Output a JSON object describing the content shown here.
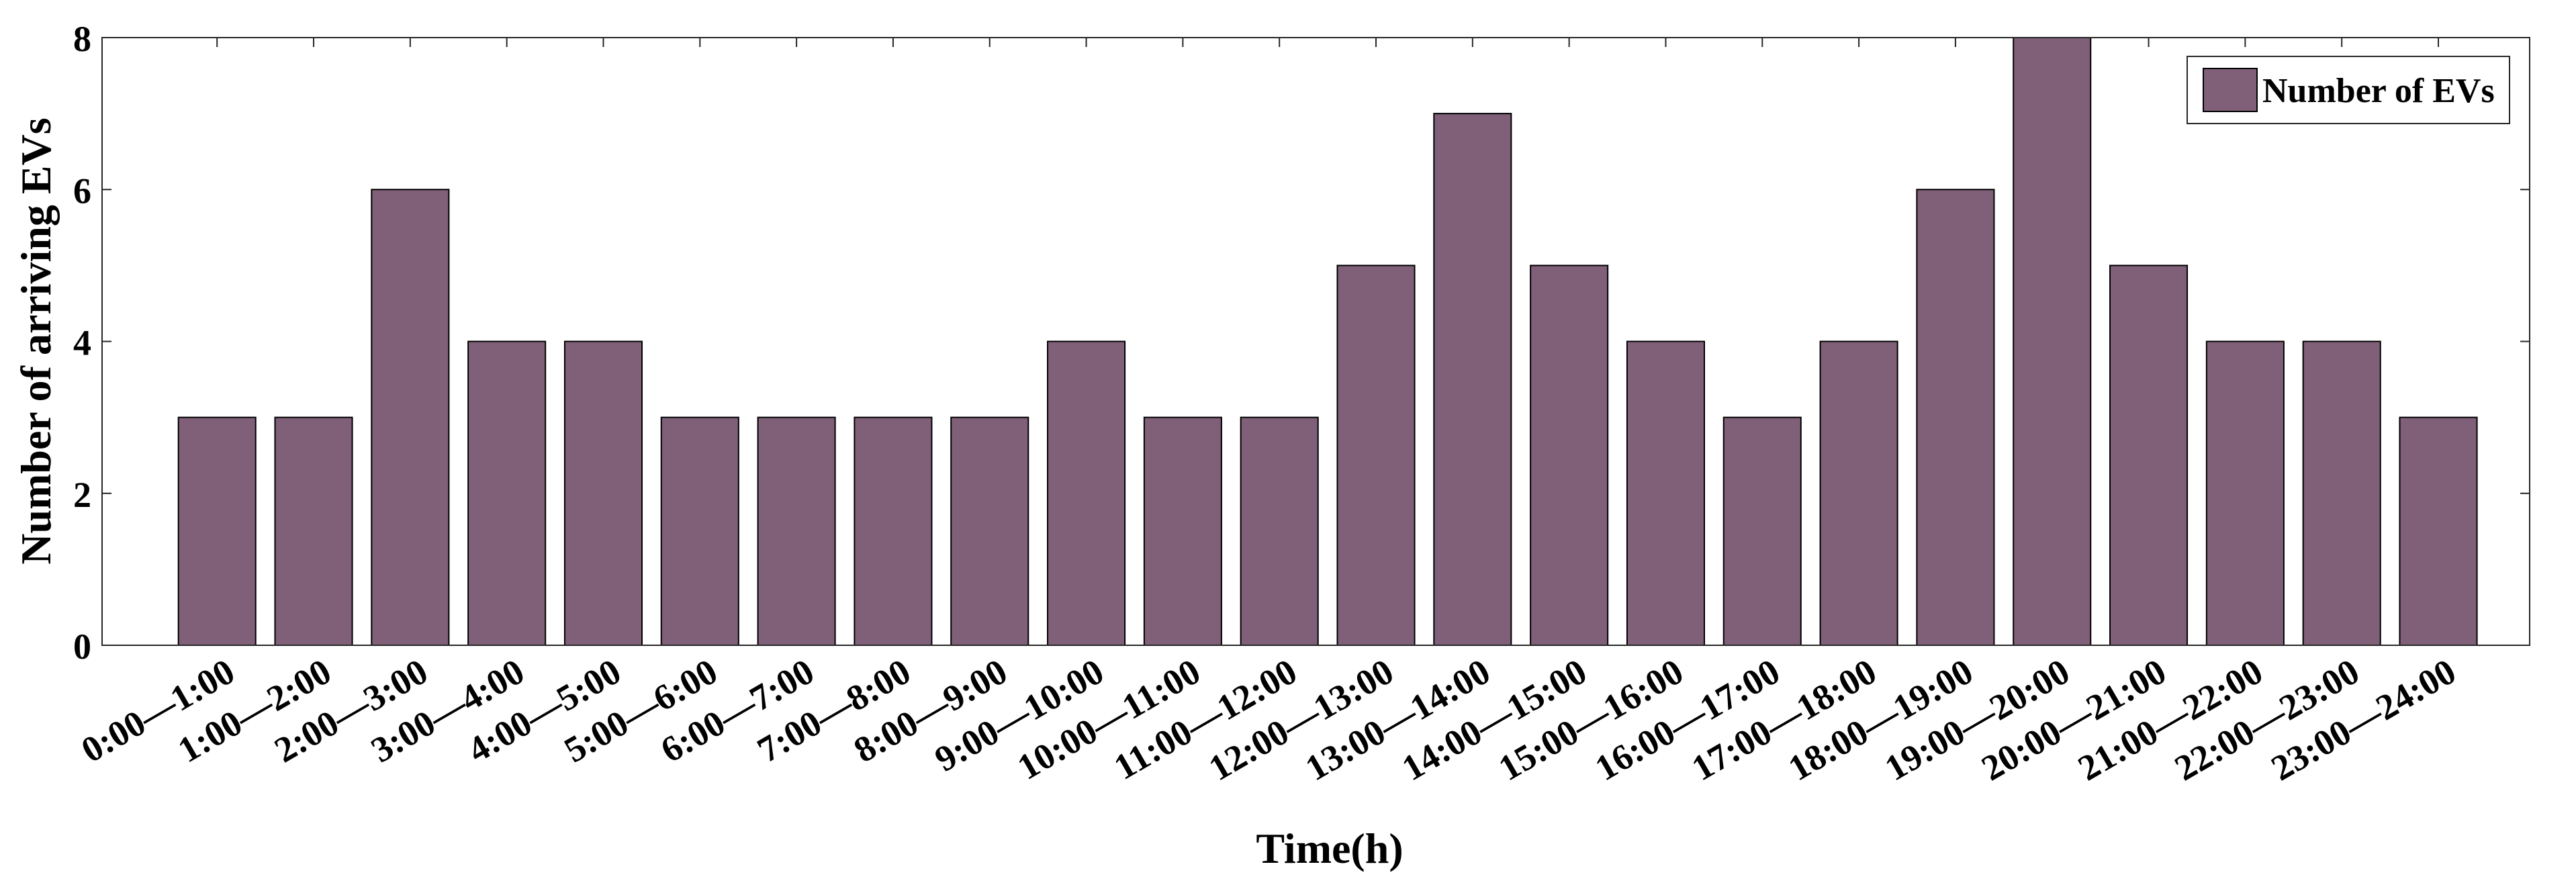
{
  "chart_data": {
    "type": "bar",
    "x_label": "Time(h)",
    "y_label": "Number of arriving EVs",
    "categories": [
      "0:00—1:00",
      "1:00—2:00",
      "2:00—3:00",
      "3:00—4:00",
      "4:00—5:00",
      "5:00—6:00",
      "6:00—7:00",
      "7:00—8:00",
      "8:00—9:00",
      "9:00—10:00",
      "10:00—11:00",
      "11:00—12:00",
      "12:00—13:00",
      "13:00—14:00",
      "14:00—15:00",
      "15:00—16:00",
      "16:00—17:00",
      "17:00—18:00",
      "18:00—19:00",
      "19:00—20:00",
      "20:00—21:00",
      "21:00—22:00",
      "22:00—23:00",
      "23:00—24:00"
    ],
    "series": [
      {
        "name": "Number of EVs",
        "color": "#806078",
        "values": [
          3,
          3,
          6,
          4,
          4,
          3,
          3,
          3,
          3,
          4,
          3,
          3,
          5,
          7,
          5,
          4,
          3,
          4,
          6,
          8,
          5,
          4,
          4,
          3
        ]
      }
    ],
    "ylim": [
      0,
      8
    ],
    "yticks": [
      0,
      2,
      4,
      6,
      8
    ],
    "grid": false,
    "legend": "upper right"
  }
}
